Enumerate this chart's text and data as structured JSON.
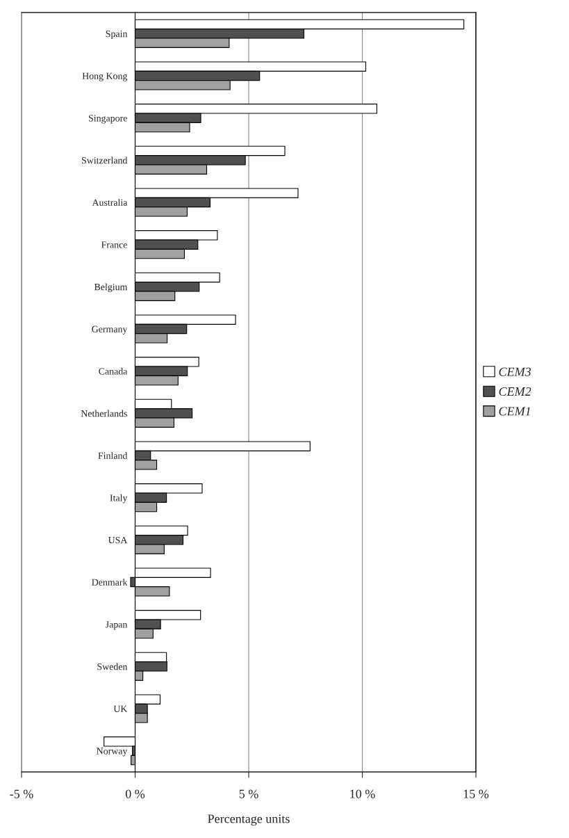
{
  "chart_data": {
    "type": "bar",
    "orientation": "horizontal",
    "xlabel": "Percentage units",
    "categories": [
      "Spain",
      "Hong Kong",
      "Singapore",
      "Switzerland",
      "Australia",
      "France",
      "Belgium",
      "Germany",
      "Canada",
      "Netherlands",
      "Finland",
      "Italy",
      "USA",
      "Denmark",
      "Japan",
      "Sweden",
      "UK",
      "Norway"
    ],
    "series": [
      {
        "name": "CEM3",
        "color": "#ffffff",
        "values": [
          14.47,
          10.15,
          10.64,
          6.59,
          7.17,
          3.62,
          3.72,
          4.42,
          2.8,
          1.6,
          7.7,
          2.95,
          2.31,
          3.32,
          2.88,
          1.38,
          1.1,
          -1.37
        ]
      },
      {
        "name": "CEM2",
        "color": "#505050",
        "values": [
          7.43,
          5.48,
          2.89,
          4.85,
          3.3,
          2.76,
          2.82,
          2.27,
          2.3,
          2.51,
          0.68,
          1.38,
          2.11,
          -0.2,
          1.12,
          1.4,
          0.54,
          -0.12
        ]
      },
      {
        "name": "CEM1",
        "color": "#a0a0a0",
        "values": [
          4.14,
          4.18,
          2.4,
          3.15,
          2.29,
          2.17,
          1.75,
          1.41,
          1.89,
          1.71,
          0.95,
          0.95,
          1.28,
          1.51,
          0.79,
          0.34,
          0.54,
          -0.18
        ]
      }
    ],
    "xlim": [
      -5,
      15
    ],
    "xticks": [
      {
        "value": -5,
        "label": "-5 %"
      },
      {
        "value": 0,
        "label": "0 %"
      },
      {
        "value": 5,
        "label": "5 %"
      },
      {
        "value": 10,
        "label": "10 %"
      },
      {
        "value": 15,
        "label": "15 %"
      }
    ],
    "grid": "x",
    "legend": "right"
  }
}
